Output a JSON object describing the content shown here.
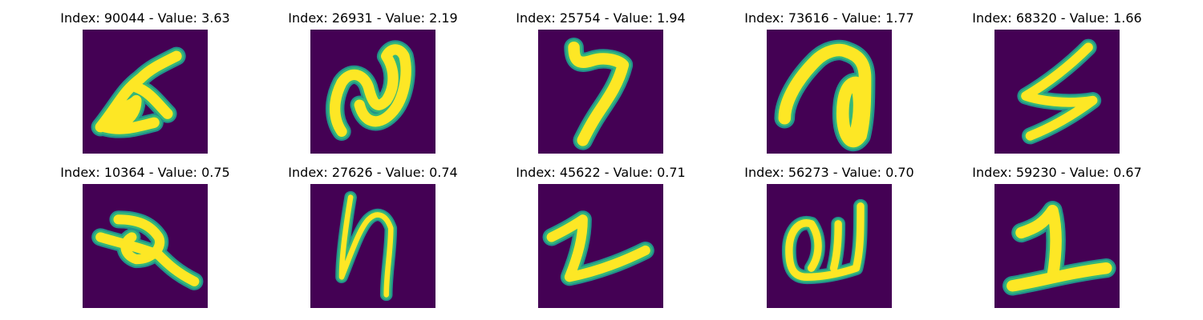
{
  "figure": {
    "background_color": "#440154",
    "glyph_core_color": "#fde725",
    "glyph_edge_color": "#35b779",
    "glyph_halo_color": "#21918c",
    "panels": [
      {
        "title": "Index: 90044 - Value: 3.63"
      },
      {
        "title": "Index: 26931 - Value: 2.19"
      },
      {
        "title": "Index: 25754 - Value: 1.94"
      },
      {
        "title": "Index: 73616 - Value: 1.77"
      },
      {
        "title": "Index: 68320 - Value: 1.66"
      },
      {
        "title": "Index: 10364 - Value: 0.75"
      },
      {
        "title": "Index: 27626 - Value: 0.74"
      },
      {
        "title": "Index: 45622 - Value: 0.71"
      },
      {
        "title": "Index: 56273 - Value: 0.70"
      },
      {
        "title": "Index: 59230 - Value: 0.67"
      }
    ]
  }
}
